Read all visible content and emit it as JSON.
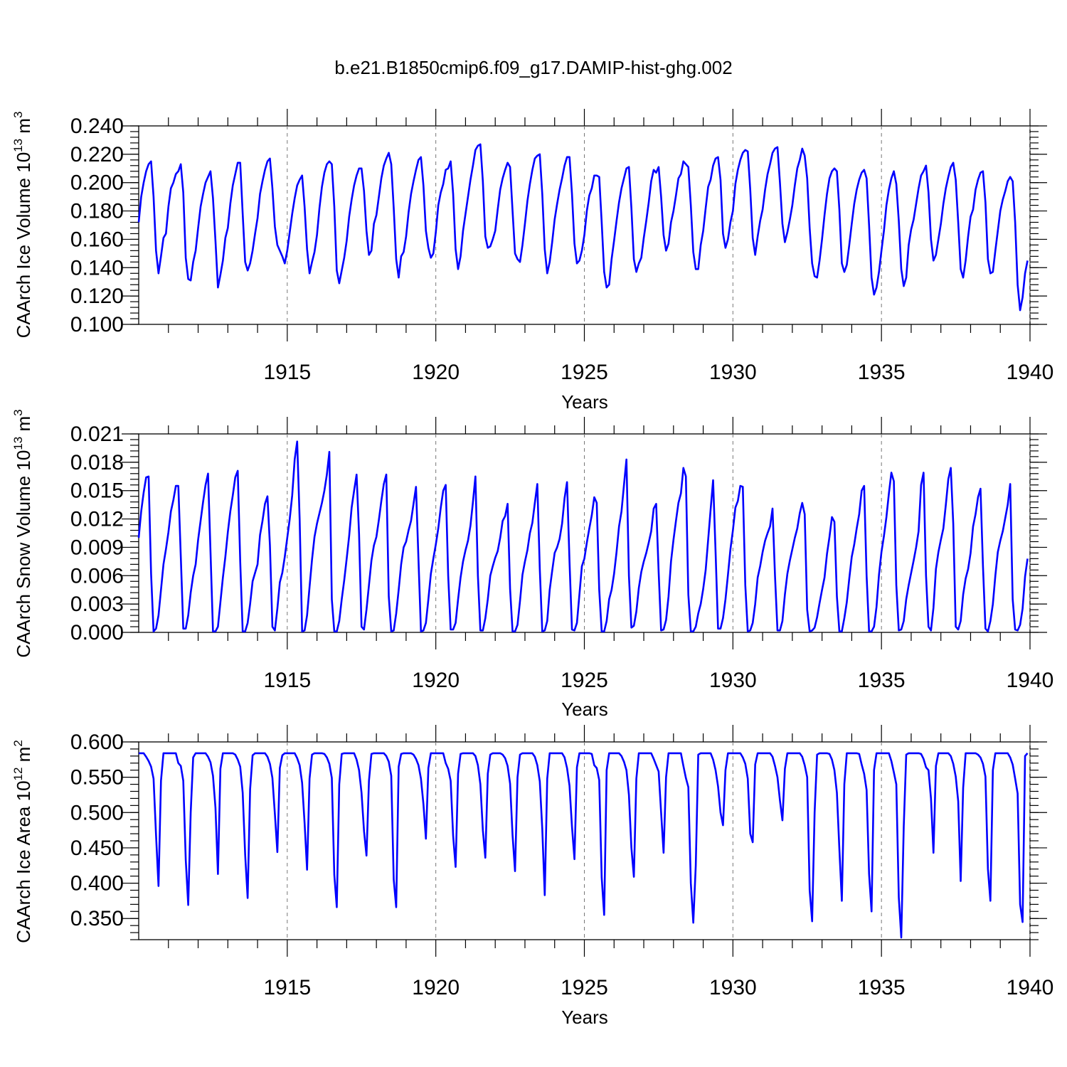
{
  "title": "b.e21.B1850cmip6.f09_g17.DAMIP-hist-ghg.002",
  "colors": {
    "line": "#0000ff",
    "frame": "#000000",
    "grid": "#777777"
  },
  "chart_data": [
    {
      "type": "line",
      "name": "ice-volume",
      "ylabel_main": "CAArch Ice Volume 10",
      "ylabel_exp": "13",
      "ylabel_unit": " m",
      "ylabel_unit_exp": "3",
      "xlabel": "Years",
      "xlim": [
        1910.0,
        1940.0
      ],
      "ylim": [
        0.1,
        0.24
      ],
      "yticks": [
        "0.100",
        "0.120",
        "0.140",
        "0.160",
        "0.180",
        "0.200",
        "0.220",
        "0.240"
      ],
      "xticks": [
        "1915",
        "1920",
        "1925",
        "1930",
        "1935",
        "1940"
      ],
      "x_start": 1910.0,
      "x_step": 0.0833333,
      "values": [
        0.172,
        0.19,
        0.2,
        0.208,
        0.213,
        0.215,
        0.19,
        0.152,
        0.136,
        0.148,
        0.161,
        0.164,
        0.183,
        0.196,
        0.2,
        0.206,
        0.208,
        0.213,
        0.193,
        0.147,
        0.132,
        0.131,
        0.144,
        0.152,
        0.168,
        0.183,
        0.192,
        0.2,
        0.204,
        0.208,
        0.189,
        0.159,
        0.126,
        0.135,
        0.145,
        0.161,
        0.168,
        0.185,
        0.198,
        0.206,
        0.214,
        0.214,
        0.178,
        0.144,
        0.138,
        0.143,
        0.152,
        0.164,
        0.175,
        0.192,
        0.201,
        0.209,
        0.215,
        0.217,
        0.196,
        0.169,
        0.156,
        0.152,
        0.148,
        0.143,
        0.152,
        0.165,
        0.178,
        0.189,
        0.198,
        0.202,
        0.205,
        0.183,
        0.153,
        0.136,
        0.144,
        0.151,
        0.163,
        0.182,
        0.197,
        0.207,
        0.213,
        0.215,
        0.213,
        0.183,
        0.138,
        0.129,
        0.138,
        0.147,
        0.159,
        0.176,
        0.188,
        0.198,
        0.205,
        0.21,
        0.21,
        0.194,
        0.166,
        0.149,
        0.152,
        0.171,
        0.177,
        0.19,
        0.203,
        0.212,
        0.217,
        0.221,
        0.213,
        0.182,
        0.146,
        0.133,
        0.148,
        0.151,
        0.162,
        0.179,
        0.192,
        0.201,
        0.209,
        0.216,
        0.218,
        0.198,
        0.166,
        0.154,
        0.147,
        0.15,
        0.165,
        0.184,
        0.193,
        0.199,
        0.209,
        0.21,
        0.215,
        0.192,
        0.153,
        0.139,
        0.148,
        0.166,
        0.178,
        0.19,
        0.202,
        0.212,
        0.223,
        0.226,
        0.227,
        0.201,
        0.162,
        0.154,
        0.155,
        0.16,
        0.166,
        0.181,
        0.195,
        0.203,
        0.209,
        0.214,
        0.211,
        0.18,
        0.15,
        0.146,
        0.144,
        0.156,
        0.171,
        0.187,
        0.199,
        0.209,
        0.217,
        0.219,
        0.22,
        0.192,
        0.153,
        0.136,
        0.144,
        0.158,
        0.174,
        0.185,
        0.195,
        0.203,
        0.212,
        0.218,
        0.218,
        0.192,
        0.157,
        0.143,
        0.145,
        0.152,
        0.163,
        0.18,
        0.191,
        0.196,
        0.205,
        0.205,
        0.204,
        0.172,
        0.137,
        0.126,
        0.128,
        0.146,
        0.159,
        0.173,
        0.186,
        0.196,
        0.203,
        0.21,
        0.211,
        0.182,
        0.146,
        0.137,
        0.143,
        0.147,
        0.161,
        0.173,
        0.186,
        0.201,
        0.209,
        0.207,
        0.211,
        0.19,
        0.163,
        0.152,
        0.157,
        0.172,
        0.18,
        0.191,
        0.203,
        0.206,
        0.215,
        0.213,
        0.211,
        0.184,
        0.151,
        0.139,
        0.139,
        0.156,
        0.166,
        0.182,
        0.197,
        0.202,
        0.212,
        0.217,
        0.218,
        0.202,
        0.164,
        0.154,
        0.16,
        0.172,
        0.18,
        0.199,
        0.209,
        0.216,
        0.221,
        0.223,
        0.222,
        0.195,
        0.161,
        0.149,
        0.162,
        0.173,
        0.181,
        0.195,
        0.206,
        0.213,
        0.221,
        0.224,
        0.225,
        0.2,
        0.171,
        0.158,
        0.165,
        0.174,
        0.184,
        0.198,
        0.21,
        0.216,
        0.224,
        0.219,
        0.203,
        0.168,
        0.143,
        0.134,
        0.133,
        0.145,
        0.16,
        0.177,
        0.192,
        0.203,
        0.208,
        0.21,
        0.208,
        0.181,
        0.143,
        0.137,
        0.142,
        0.156,
        0.171,
        0.185,
        0.195,
        0.202,
        0.207,
        0.209,
        0.203,
        0.17,
        0.133,
        0.121,
        0.126,
        0.137,
        0.152,
        0.166,
        0.184,
        0.195,
        0.203,
        0.208,
        0.199,
        0.173,
        0.139,
        0.127,
        0.133,
        0.156,
        0.167,
        0.174,
        0.185,
        0.196,
        0.205,
        0.208,
        0.212,
        0.193,
        0.16,
        0.145,
        0.149,
        0.16,
        0.171,
        0.185,
        0.196,
        0.204,
        0.211,
        0.214,
        0.202,
        0.172,
        0.139,
        0.133,
        0.145,
        0.162,
        0.176,
        0.181,
        0.195,
        0.202,
        0.207,
        0.208,
        0.186,
        0.146,
        0.136,
        0.137,
        0.152,
        0.166,
        0.18,
        0.188,
        0.194,
        0.201,
        0.204,
        0.201,
        0.172,
        0.128,
        0.11,
        0.119,
        0.136,
        0.145
      ]
    },
    {
      "type": "line",
      "name": "snow-volume",
      "ylabel_main": "CAArch Snow Volume 10",
      "ylabel_exp": "13",
      "ylabel_unit": " m",
      "ylabel_unit_exp": "3",
      "xlabel": "Years",
      "xlim": [
        1910.0,
        1940.0
      ],
      "ylim": [
        0.0,
        0.021
      ],
      "yticks": [
        "0.000",
        "0.003",
        "0.006",
        "0.009",
        "0.012",
        "0.015",
        "0.018",
        "0.021"
      ],
      "xticks": [
        "1915",
        "1920",
        "1925",
        "1930",
        "1935",
        "1940"
      ],
      "x_start": 1910.0,
      "x_step": 0.0833333,
      "values": [
        0.01,
        0.0128,
        0.0148,
        0.0164,
        0.0165,
        0.0062,
        0.0001,
        0.0004,
        0.0018,
        0.0045,
        0.0072,
        0.0088,
        0.0106,
        0.0128,
        0.014,
        0.0155,
        0.0155,
        0.008,
        0.0004,
        0.0004,
        0.0018,
        0.0042,
        0.006,
        0.0072,
        0.0098,
        0.0118,
        0.0138,
        0.0156,
        0.0168,
        0.0085,
        0.0001,
        0.0001,
        0.0006,
        0.0032,
        0.0058,
        0.008,
        0.0106,
        0.0128,
        0.0145,
        0.0164,
        0.0171,
        0.0075,
        0.0001,
        0.0001,
        0.001,
        0.003,
        0.0054,
        0.0063,
        0.0072,
        0.0103,
        0.0118,
        0.0136,
        0.0144,
        0.0092,
        0.0006,
        0.0002,
        0.0025,
        0.0053,
        0.0063,
        0.008,
        0.01,
        0.012,
        0.0145,
        0.0183,
        0.0202,
        0.012,
        0.0001,
        0.0002,
        0.0018,
        0.0048,
        0.0077,
        0.0101,
        0.0115,
        0.0126,
        0.0137,
        0.015,
        0.0167,
        0.0191,
        0.0035,
        0.0001,
        0.0001,
        0.0012,
        0.0035,
        0.0055,
        0.0078,
        0.0102,
        0.0132,
        0.015,
        0.0167,
        0.0104,
        0.0006,
        0.0003,
        0.0024,
        0.005,
        0.0076,
        0.0092,
        0.0101,
        0.0119,
        0.0139,
        0.0157,
        0.0167,
        0.0038,
        0.0001,
        0.0002,
        0.002,
        0.0045,
        0.0072,
        0.009,
        0.0096,
        0.0108,
        0.0118,
        0.0136,
        0.0154,
        0.0077,
        0.0001,
        0.0002,
        0.001,
        0.0035,
        0.0062,
        0.0078,
        0.0093,
        0.011,
        0.0132,
        0.015,
        0.0156,
        0.006,
        0.0003,
        0.0003,
        0.001,
        0.0035,
        0.0058,
        0.0075,
        0.0087,
        0.0097,
        0.0113,
        0.0138,
        0.0165,
        0.006,
        0.0002,
        0.0002,
        0.0015,
        0.0035,
        0.006,
        0.007,
        0.0079,
        0.0086,
        0.01,
        0.0118,
        0.0123,
        0.0136,
        0.0046,
        0.0001,
        0.0001,
        0.0008,
        0.0033,
        0.0061,
        0.0075,
        0.0087,
        0.0105,
        0.0116,
        0.0137,
        0.0157,
        0.0067,
        0.0001,
        0.0002,
        0.0012,
        0.0045,
        0.0065,
        0.0084,
        0.009,
        0.0099,
        0.0115,
        0.0142,
        0.0159,
        0.0075,
        0.0003,
        0.0002,
        0.001,
        0.004,
        0.007,
        0.0078,
        0.0095,
        0.011,
        0.0124,
        0.0143,
        0.0137,
        0.0045,
        0.0001,
        0.0001,
        0.0012,
        0.0035,
        0.0045,
        0.0062,
        0.0085,
        0.0112,
        0.0128,
        0.0156,
        0.0183,
        0.006,
        0.0005,
        0.0007,
        0.0022,
        0.0047,
        0.0064,
        0.0075,
        0.0084,
        0.0095,
        0.0107,
        0.0131,
        0.0136,
        0.0064,
        0.0002,
        0.0003,
        0.0013,
        0.0038,
        0.0075,
        0.0098,
        0.0118,
        0.0137,
        0.0147,
        0.0174,
        0.0165,
        0.004,
        0.0001,
        0.0001,
        0.0006,
        0.002,
        0.003,
        0.0046,
        0.0066,
        0.0098,
        0.013,
        0.0161,
        0.0085,
        0.0004,
        0.0004,
        0.0015,
        0.0035,
        0.0061,
        0.0088,
        0.0108,
        0.0132,
        0.0139,
        0.0155,
        0.0154,
        0.005,
        0.0001,
        0.0002,
        0.001,
        0.003,
        0.0058,
        0.007,
        0.0085,
        0.0097,
        0.0105,
        0.0112,
        0.0131,
        0.006,
        0.0002,
        0.0002,
        0.0012,
        0.004,
        0.0062,
        0.0076,
        0.0088,
        0.01,
        0.011,
        0.0126,
        0.0137,
        0.0125,
        0.0024,
        0.0001,
        0.0002,
        0.0005,
        0.0016,
        0.0031,
        0.0045,
        0.0058,
        0.0083,
        0.0101,
        0.0122,
        0.0117,
        0.0038,
        0.0001,
        0.0001,
        0.0015,
        0.0032,
        0.0057,
        0.008,
        0.0093,
        0.011,
        0.0125,
        0.015,
        0.0155,
        0.006,
        0.0001,
        0.0001,
        0.0006,
        0.0027,
        0.0061,
        0.0085,
        0.0102,
        0.0122,
        0.0147,
        0.0169,
        0.016,
        0.005,
        0.0002,
        0.0003,
        0.0012,
        0.0035,
        0.005,
        0.0063,
        0.0076,
        0.009,
        0.0107,
        0.0156,
        0.0169,
        0.006,
        0.0006,
        0.0002,
        0.0026,
        0.0067,
        0.0085,
        0.0098,
        0.011,
        0.0135,
        0.0162,
        0.0174,
        0.0115,
        0.0006,
        0.0003,
        0.0012,
        0.004,
        0.0057,
        0.0067,
        0.0084,
        0.0112,
        0.0125,
        0.0143,
        0.0152,
        0.007,
        0.0004,
        0.0001,
        0.0012,
        0.003,
        0.006,
        0.0085,
        0.0097,
        0.0107,
        0.0121,
        0.0135,
        0.0157,
        0.0035,
        0.0003,
        0.0002,
        0.0008,
        0.0025,
        0.0059,
        0.0078
      ]
    },
    {
      "type": "line",
      "name": "ice-area",
      "ylabel_main": "CAArch Ice Area 10",
      "ylabel_exp": "12",
      "ylabel_unit": " m",
      "ylabel_unit_exp": "2",
      "xlabel": "Years",
      "xlim": [
        1910.0,
        1940.0
      ],
      "ylim": [
        0.32,
        0.6
      ],
      "yticks": [
        "0.350",
        "0.400",
        "0.450",
        "0.500",
        "0.550",
        "0.600"
      ],
      "xticks": [
        "1915",
        "1920",
        "1925",
        "1930",
        "1935",
        "1940"
      ],
      "x_start": 1910.0,
      "x_step": 0.0833333,
      "values": [
        0.584,
        0.584,
        0.584,
        0.579,
        0.573,
        0.565,
        0.548,
        0.468,
        0.396,
        0.545,
        0.584,
        0.584,
        0.584,
        0.584,
        0.584,
        0.584,
        0.57,
        0.566,
        0.545,
        0.433,
        0.369,
        0.5,
        0.578,
        0.584,
        0.584,
        0.584,
        0.584,
        0.584,
        0.579,
        0.571,
        0.552,
        0.507,
        0.413,
        0.562,
        0.584,
        0.584,
        0.584,
        0.584,
        0.584,
        0.582,
        0.575,
        0.565,
        0.528,
        0.44,
        0.379,
        0.533,
        0.581,
        0.584,
        0.584,
        0.584,
        0.584,
        0.584,
        0.579,
        0.569,
        0.549,
        0.498,
        0.444,
        0.563,
        0.581,
        0.584,
        0.584,
        0.584,
        0.584,
        0.584,
        0.577,
        0.567,
        0.542,
        0.485,
        0.419,
        0.548,
        0.582,
        0.584,
        0.584,
        0.584,
        0.584,
        0.583,
        0.578,
        0.569,
        0.549,
        0.412,
        0.366,
        0.54,
        0.583,
        0.584,
        0.584,
        0.584,
        0.584,
        0.584,
        0.575,
        0.56,
        0.528,
        0.474,
        0.439,
        0.545,
        0.583,
        0.584,
        0.584,
        0.584,
        0.584,
        0.584,
        0.58,
        0.572,
        0.552,
        0.405,
        0.366,
        0.565,
        0.583,
        0.584,
        0.584,
        0.584,
        0.584,
        0.582,
        0.576,
        0.567,
        0.548,
        0.512,
        0.463,
        0.563,
        0.584,
        0.584,
        0.584,
        0.584,
        0.584,
        0.584,
        0.57,
        0.562,
        0.545,
        0.467,
        0.423,
        0.555,
        0.583,
        0.584,
        0.584,
        0.584,
        0.584,
        0.584,
        0.58,
        0.567,
        0.54,
        0.475,
        0.436,
        0.555,
        0.582,
        0.584,
        0.584,
        0.584,
        0.584,
        0.582,
        0.577,
        0.566,
        0.541,
        0.468,
        0.417,
        0.55,
        0.582,
        0.584,
        0.584,
        0.584,
        0.584,
        0.584,
        0.579,
        0.567,
        0.544,
        0.477,
        0.383,
        0.548,
        0.584,
        0.584,
        0.584,
        0.584,
        0.584,
        0.584,
        0.578,
        0.563,
        0.538,
        0.48,
        0.434,
        0.564,
        0.584,
        0.584,
        0.584,
        0.584,
        0.584,
        0.583,
        0.567,
        0.563,
        0.546,
        0.408,
        0.355,
        0.56,
        0.584,
        0.584,
        0.584,
        0.584,
        0.584,
        0.58,
        0.572,
        0.56,
        0.525,
        0.45,
        0.409,
        0.548,
        0.584,
        0.584,
        0.584,
        0.584,
        0.584,
        0.584,
        0.576,
        0.567,
        0.558,
        0.5,
        0.443,
        0.55,
        0.584,
        0.584,
        0.584,
        0.584,
        0.584,
        0.584,
        0.566,
        0.549,
        0.536,
        0.4,
        0.344,
        0.425,
        0.582,
        0.584,
        0.584,
        0.584,
        0.584,
        0.584,
        0.575,
        0.56,
        0.537,
        0.5,
        0.482,
        0.56,
        0.584,
        0.584,
        0.584,
        0.584,
        0.584,
        0.584,
        0.578,
        0.569,
        0.548,
        0.47,
        0.458,
        0.568,
        0.584,
        0.584,
        0.584,
        0.584,
        0.584,
        0.584,
        0.579,
        0.566,
        0.55,
        0.517,
        0.489,
        0.562,
        0.584,
        0.584,
        0.584,
        0.584,
        0.584,
        0.584,
        0.579,
        0.567,
        0.55,
        0.39,
        0.346,
        0.5,
        0.582,
        0.584,
        0.584,
        0.584,
        0.584,
        0.583,
        0.575,
        0.56,
        0.528,
        0.448,
        0.375,
        0.54,
        0.584,
        0.584,
        0.584,
        0.584,
        0.584,
        0.583,
        0.568,
        0.555,
        0.532,
        0.413,
        0.36,
        0.56,
        0.584,
        0.584,
        0.584,
        0.584,
        0.584,
        0.584,
        0.573,
        0.557,
        0.54,
        0.38,
        0.323,
        0.48,
        0.582,
        0.584,
        0.584,
        0.584,
        0.584,
        0.584,
        0.583,
        0.576,
        0.564,
        0.56,
        0.52,
        0.443,
        0.566,
        0.584,
        0.584,
        0.584,
        0.584,
        0.584,
        0.58,
        0.569,
        0.551,
        0.516,
        0.403,
        0.535,
        0.584,
        0.584,
        0.584,
        0.584,
        0.584,
        0.582,
        0.578,
        0.569,
        0.551,
        0.42,
        0.375,
        0.56,
        0.584,
        0.584,
        0.584,
        0.584,
        0.584,
        0.584,
        0.578,
        0.568,
        0.548,
        0.527,
        0.37,
        0.345,
        0.58,
        0.584
      ]
    }
  ]
}
